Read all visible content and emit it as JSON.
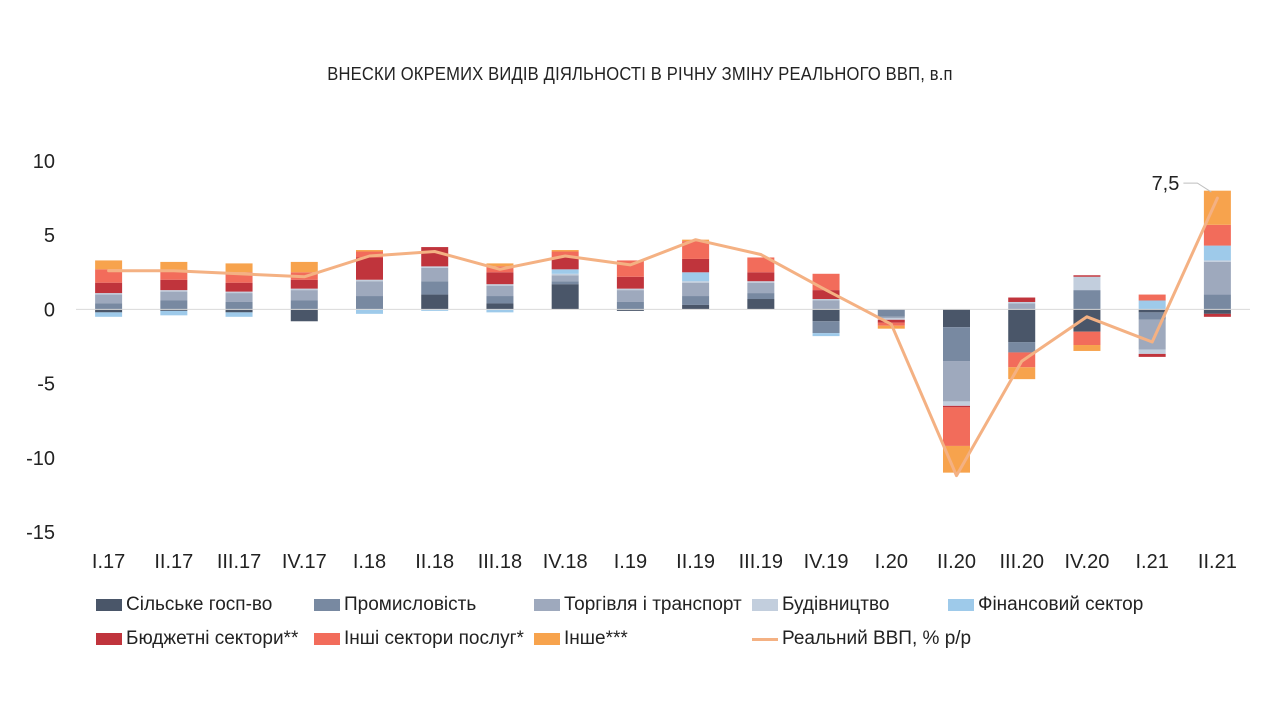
{
  "chart_data": {
    "type": "bar",
    "stacked": true,
    "title": "ВНЕСКИ ОКРЕМИХ ВИДІВ ДІЯЛЬНОСТІ В РІЧНУ ЗМІНУ РЕАЛЬНОГО ВВП, в.п",
    "categories": [
      "I.17",
      "II.17",
      "III.17",
      "IV.17",
      "I.18",
      "II.18",
      "III.18",
      "IV.18",
      "I.19",
      "II.19",
      "III.19",
      "IV.19",
      "I.20",
      "II.20",
      "III.20",
      "IV.20",
      "I.21",
      "II.21"
    ],
    "ylim": [
      -15,
      10
    ],
    "yticks": [
      "10",
      "5",
      "0",
      "-5",
      "-10",
      "-15"
    ],
    "grid": false,
    "legend_position": "bottom",
    "series": [
      {
        "name": "Сільське госп-во",
        "color": "#4a5669",
        "values": [
          -0.2,
          -0.1,
          -0.2,
          -0.8,
          0.0,
          1.0,
          0.4,
          1.7,
          -0.1,
          0.3,
          0.7,
          -0.8,
          0.0,
          -1.2,
          -2.2,
          -1.5,
          -0.2,
          -0.3
        ]
      },
      {
        "name": "Промисловість",
        "color": "#7889a1",
        "values": [
          0.4,
          0.6,
          0.5,
          0.6,
          0.9,
          0.9,
          0.5,
          0.2,
          0.5,
          0.6,
          0.4,
          -0.8,
          -0.5,
          -2.3,
          -0.7,
          1.3,
          -0.5,
          1.0
        ]
      },
      {
        "name": "Торгівля і транспорт",
        "color": "#9ea9bd",
        "values": [
          0.6,
          0.6,
          0.6,
          0.7,
          1.0,
          0.9,
          0.7,
          0.4,
          0.8,
          0.9,
          0.7,
          0.6,
          -0.1,
          -2.7,
          0.4,
          0.0,
          -2.0,
          2.2
        ]
      },
      {
        "name": "Будівництво",
        "color": "#c2cedd",
        "values": [
          0.1,
          0.1,
          0.1,
          0.1,
          0.1,
          0.1,
          0.1,
          0.1,
          0.1,
          0.1,
          0.1,
          0.1,
          -0.1,
          -0.3,
          0.1,
          0.9,
          -0.3,
          0.1
        ]
      },
      {
        "name": "Фінансовий сектор",
        "color": "#9ecaea",
        "values": [
          -0.3,
          -0.3,
          -0.3,
          0.0,
          -0.3,
          -0.1,
          -0.2,
          0.3,
          0.0,
          0.6,
          0.0,
          -0.2,
          0.0,
          0.0,
          0.0,
          0.0,
          0.6,
          1.0
        ]
      },
      {
        "name": "Бюджетні сектори**",
        "color": "#c0343c",
        "values": [
          0.7,
          0.7,
          0.6,
          0.6,
          1.5,
          1.3,
          0.8,
          0.8,
          0.8,
          0.9,
          0.6,
          0.6,
          -0.2,
          -0.1,
          0.3,
          0.1,
          -0.2,
          -0.2
        ]
      },
      {
        "name": "Інші сектори послуг*",
        "color": "#f26c5b",
        "values": [
          0.9,
          0.6,
          0.7,
          0.5,
          0.4,
          0.0,
          0.4,
          0.4,
          1.1,
          1.2,
          1.0,
          1.1,
          -0.2,
          -2.6,
          -1.0,
          -0.9,
          0.4,
          1.4
        ]
      },
      {
        "name": "Інше***",
        "color": "#f7a34d",
        "values": [
          0.6,
          0.6,
          0.6,
          0.7,
          0.1,
          0.0,
          0.2,
          0.1,
          0.0,
          0.1,
          0.0,
          0.0,
          -0.2,
          -1.8,
          -0.8,
          -0.4,
          0.0,
          2.3
        ]
      }
    ],
    "line": {
      "name": "Реальний ВВП, % р/р",
      "color": "#f4b183",
      "values": [
        2.6,
        2.6,
        2.4,
        2.2,
        3.6,
        3.9,
        2.7,
        3.6,
        3.0,
        4.7,
        3.7,
        1.3,
        -1.0,
        -11.2,
        -3.5,
        -0.5,
        -2.2,
        7.5
      ]
    },
    "annotation": {
      "text": "7,5",
      "category": "II.21"
    }
  },
  "legend_rows": [
    [
      "Сільське госп-во",
      "Промисловість",
      "Торгівля і транспорт",
      "Будівництво",
      "Фінансовий сектор"
    ],
    [
      "Бюджетні сектори**",
      "Інші сектори послуг*",
      "Інше***",
      "Реальний ВВП, % р/р"
    ]
  ]
}
